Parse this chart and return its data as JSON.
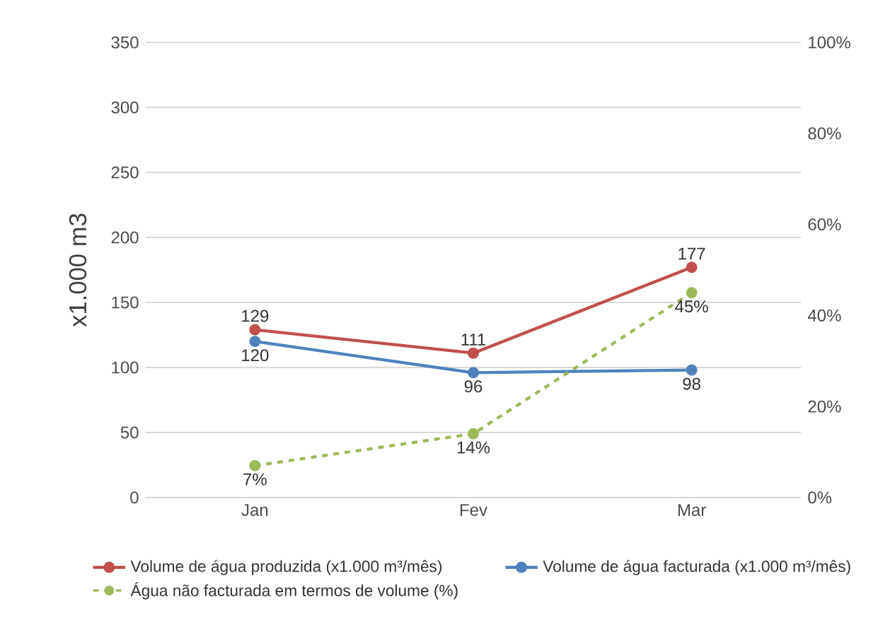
{
  "chart_data": {
    "type": "line",
    "ylabel": "x1.000 m3",
    "categories": [
      "Jan",
      "Fev",
      "Mar"
    ],
    "series": [
      {
        "name": "Volume de água produzida (x1.000 m³/mês)",
        "color": "#c0504d",
        "values": [
          129,
          111,
          177
        ],
        "value_labels": [
          "129",
          "111",
          "177"
        ]
      },
      {
        "name": "Volume de água facturada (x1.000 m³/mês)",
        "color": "#4f81bd",
        "values": [
          120,
          96,
          98
        ],
        "value_labels": [
          "120",
          "96",
          "98"
        ]
      },
      {
        "name": "Água não facturada em termos de volume (%)",
        "color": "#9bbb59",
        "values": [
          7,
          14,
          45
        ],
        "value_labels": [
          "7%",
          "14%",
          "45%"
        ],
        "axis": "y2",
        "line_style": "dashed"
      }
    ],
    "ylim": [
      0,
      350
    ],
    "yticks": [
      0,
      50,
      100,
      150,
      200,
      250,
      300,
      350
    ],
    "y2lim": [
      0,
      100
    ],
    "y2ticks": [
      {
        "value": 0,
        "label": "0%"
      },
      {
        "value": 20,
        "label": "20%"
      },
      {
        "value": 40,
        "label": "40%"
      },
      {
        "value": 60,
        "label": "60%"
      },
      {
        "value": 80,
        "label": "80%"
      },
      {
        "value": 100,
        "label": "100%"
      }
    ],
    "grid": "y",
    "legend": "bottom",
    "marker": "circle"
  }
}
